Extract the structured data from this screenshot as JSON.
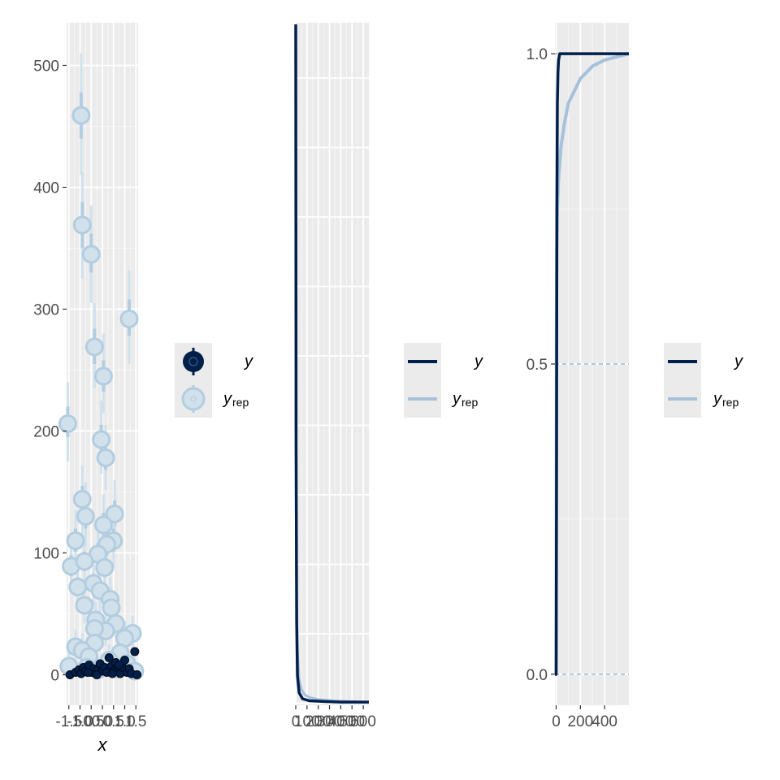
{
  "colors": {
    "y_dark": "#011f4b",
    "yrep_light": "#b3cde0",
    "yrep_mid": "#a6c1db",
    "panel_bg": "#ebebeb",
    "grid_major": "#ffffff",
    "grid_minor": "#f5f5f5",
    "legend_key_bg": "#ebebeb"
  },
  "legend": {
    "y_label": "y",
    "yrep_label": "y",
    "yrep_subscript": "rep"
  },
  "chart_data": [
    {
      "type": "scatter",
      "subtype": "ppc_intervals",
      "xlabel": "x",
      "ylabel": "",
      "xlim": [
        -1.6,
        1.6
      ],
      "ylim": [
        -25,
        535
      ],
      "x_ticks": [
        -1.5,
        -1.0,
        -0.5,
        0.0,
        0.5,
        1.0,
        1.5
      ],
      "x_tick_labels": [
        "-1.5",
        "-1.0",
        "-0.5",
        "0.0",
        "0.5",
        "1.0",
        "1.5"
      ],
      "y_ticks": [
        0,
        100,
        200,
        300,
        400,
        500
      ],
      "y_tick_labels": [
        "0",
        "100",
        "200",
        "300",
        "400",
        "500"
      ],
      "series": [
        {
          "name": "y_rep",
          "points": [
            {
              "x": -1.55,
              "y": 206,
              "lo50": 195,
              "hi50": 220,
              "lo90": 175,
              "hi90": 240
            },
            {
              "x": -0.95,
              "y": 459,
              "lo50": 440,
              "hi50": 478,
              "lo90": 410,
              "hi90": 510
            },
            {
              "x": -0.9,
              "y": 369,
              "lo50": 350,
              "hi50": 388,
              "lo90": 325,
              "hi90": 412
            },
            {
              "x": -0.5,
              "y": 345,
              "lo50": 330,
              "hi50": 362,
              "lo90": 305,
              "hi90": 385
            },
            {
              "x": -0.35,
              "y": 269,
              "lo50": 255,
              "hi50": 284,
              "lo90": 235,
              "hi90": 305
            },
            {
              "x": 0.05,
              "y": 245,
              "lo50": 232,
              "hi50": 258,
              "lo90": 215,
              "hi90": 280
            },
            {
              "x": 1.2,
              "y": 292,
              "lo50": 278,
              "hi50": 308,
              "lo90": 255,
              "hi90": 332
            },
            {
              "x": -0.05,
              "y": 193,
              "lo50": 182,
              "hi50": 205,
              "lo90": 165,
              "hi90": 225
            },
            {
              "x": 0.15,
              "y": 178,
              "lo50": 168,
              "hi50": 190,
              "lo90": 152,
              "hi90": 205
            },
            {
              "x": -0.9,
              "y": 144,
              "lo50": 132,
              "hi50": 155,
              "lo90": 115,
              "hi90": 172
            },
            {
              "x": -0.75,
              "y": 130,
              "lo50": 120,
              "hi50": 141,
              "lo90": 105,
              "hi90": 158
            },
            {
              "x": 0.55,
              "y": 132,
              "lo50": 122,
              "hi50": 143,
              "lo90": 108,
              "hi90": 160
            },
            {
              "x": -1.2,
              "y": 110,
              "lo50": 101,
              "hi50": 120,
              "lo90": 88,
              "hi90": 135
            },
            {
              "x": 0.05,
              "y": 123,
              "lo50": 113,
              "hi50": 133,
              "lo90": 100,
              "hi90": 148
            },
            {
              "x": 0.5,
              "y": 110,
              "lo50": 101,
              "hi50": 120,
              "lo90": 88,
              "hi90": 135
            },
            {
              "x": 0.2,
              "y": 107,
              "lo50": 98,
              "hi50": 117,
              "lo90": 85,
              "hi90": 132
            },
            {
              "x": -0.2,
              "y": 99,
              "lo50": 90,
              "hi50": 108,
              "lo90": 78,
              "hi90": 122
            },
            {
              "x": -1.4,
              "y": 89,
              "lo50": 81,
              "hi50": 98,
              "lo90": 70,
              "hi90": 110
            },
            {
              "x": -0.8,
              "y": 93,
              "lo50": 85,
              "hi50": 101,
              "lo90": 74,
              "hi90": 114
            },
            {
              "x": 0.1,
              "y": 88,
              "lo50": 80,
              "hi50": 96,
              "lo90": 70,
              "hi90": 108
            },
            {
              "x": -1.1,
              "y": 72,
              "lo50": 65,
              "hi50": 80,
              "lo90": 55,
              "hi90": 92
            },
            {
              "x": -0.4,
              "y": 75,
              "lo50": 68,
              "hi50": 83,
              "lo90": 58,
              "hi90": 95
            },
            {
              "x": -0.1,
              "y": 69,
              "lo50": 62,
              "hi50": 76,
              "lo90": 52,
              "hi90": 87
            },
            {
              "x": 0.35,
              "y": 62,
              "lo50": 56,
              "hi50": 69,
              "lo90": 47,
              "hi90": 80
            },
            {
              "x": -0.8,
              "y": 57,
              "lo50": 51,
              "hi50": 64,
              "lo90": 42,
              "hi90": 74
            },
            {
              "x": 0.4,
              "y": 55,
              "lo50": 49,
              "hi50": 62,
              "lo90": 40,
              "hi90": 72
            },
            {
              "x": -0.3,
              "y": 45,
              "lo50": 40,
              "hi50": 51,
              "lo90": 32,
              "hi90": 60
            },
            {
              "x": 0.6,
              "y": 42,
              "lo50": 37,
              "hi50": 48,
              "lo90": 30,
              "hi90": 57
            },
            {
              "x": 0.15,
              "y": 36,
              "lo50": 31,
              "hi50": 42,
              "lo90": 24,
              "hi90": 50
            },
            {
              "x": -0.35,
              "y": 38,
              "lo50": 33,
              "hi50": 44,
              "lo90": 26,
              "hi90": 52
            },
            {
              "x": 1.35,
              "y": 34,
              "lo50": 29,
              "hi50": 40,
              "lo90": 22,
              "hi90": 48
            },
            {
              "x": 1.0,
              "y": 30,
              "lo50": 25,
              "hi50": 36,
              "lo90": 18,
              "hi90": 44
            },
            {
              "x": -0.35,
              "y": 26,
              "lo50": 21,
              "hi50": 32,
              "lo90": 15,
              "hi90": 40
            },
            {
              "x": -1.2,
              "y": 23,
              "lo50": 18,
              "hi50": 29,
              "lo90": 12,
              "hi90": 37
            },
            {
              "x": -0.9,
              "y": 20,
              "lo50": 15,
              "hi50": 26,
              "lo90": 9,
              "hi90": 34
            },
            {
              "x": 0.8,
              "y": 18,
              "lo50": 13,
              "hi50": 24,
              "lo90": 7,
              "hi90": 32
            },
            {
              "x": -0.6,
              "y": 15,
              "lo50": 10,
              "hi50": 21,
              "lo90": 4,
              "hi90": 28
            },
            {
              "x": 0.3,
              "y": 12,
              "lo50": 7,
              "hi50": 18,
              "lo90": 2,
              "hi90": 25
            },
            {
              "x": -1.5,
              "y": 7,
              "lo50": 3,
              "hi50": 12,
              "lo90": -1,
              "hi90": 18
            },
            {
              "x": 1.1,
              "y": 9,
              "lo50": 4,
              "hi50": 14,
              "lo90": 0,
              "hi90": 21
            },
            {
              "x": -0.7,
              "y": 6,
              "lo50": 2,
              "hi50": 11,
              "lo90": -2,
              "hi90": 17
            },
            {
              "x": 0.7,
              "y": 5,
              "lo50": 1,
              "hi50": 10,
              "lo90": -3,
              "hi90": 16
            },
            {
              "x": -0.2,
              "y": 4,
              "lo50": 0,
              "hi50": 9,
              "lo90": -4,
              "hi90": 15
            },
            {
              "x": 1.45,
              "y": 3,
              "lo50": 0,
              "hi50": 8,
              "lo90": -4,
              "hi90": 14
            }
          ]
        },
        {
          "name": "y",
          "points": [
            {
              "x": -1.45,
              "y": 0
            },
            {
              "x": -1.2,
              "y": 2
            },
            {
              "x": -1.05,
              "y": 4
            },
            {
              "x": -0.95,
              "y": 1
            },
            {
              "x": -0.85,
              "y": 6
            },
            {
              "x": -0.75,
              "y": 3
            },
            {
              "x": -0.6,
              "y": 8
            },
            {
              "x": -0.5,
              "y": 2
            },
            {
              "x": -0.4,
              "y": 5
            },
            {
              "x": -0.3,
              "y": 1
            },
            {
              "x": -0.2,
              "y": 4
            },
            {
              "x": -0.1,
              "y": 9
            },
            {
              "x": 0.0,
              "y": 3
            },
            {
              "x": 0.1,
              "y": 6
            },
            {
              "x": 0.2,
              "y": 2
            },
            {
              "x": 0.3,
              "y": 14
            },
            {
              "x": 0.4,
              "y": 7
            },
            {
              "x": 0.5,
              "y": 3
            },
            {
              "x": 0.6,
              "y": 10
            },
            {
              "x": 0.7,
              "y": 4
            },
            {
              "x": 0.8,
              "y": 1
            },
            {
              "x": 0.9,
              "y": 6
            },
            {
              "x": 1.0,
              "y": 12
            },
            {
              "x": 1.1,
              "y": 2
            },
            {
              "x": 1.2,
              "y": 5
            },
            {
              "x": 1.3,
              "y": 1
            },
            {
              "x": 1.45,
              "y": 19
            },
            {
              "x": 1.55,
              "y": 0
            },
            {
              "x": -0.25,
              "y": 0
            },
            {
              "x": 0.45,
              "y": 1
            },
            {
              "x": 0.75,
              "y": 8
            },
            {
              "x": -0.65,
              "y": 2
            }
          ]
        }
      ]
    },
    {
      "type": "line",
      "subtype": "density_overlay",
      "xlabel": "",
      "ylabel": "",
      "xlim": [
        0,
        650
      ],
      "x_ticks": [
        0,
        100,
        200,
        300,
        400,
        500,
        600
      ],
      "x_tick_labels": [
        "0",
        "100",
        "200",
        "300",
        "400",
        "500",
        "600"
      ],
      "series": [
        {
          "name": "y",
          "x": [
            0,
            3,
            8,
            15,
            30,
            60,
            120,
            250,
            400,
            650
          ],
          "values": [
            1.0,
            0.38,
            0.12,
            0.04,
            0.015,
            0.006,
            0.003,
            0.002,
            0.001,
            0.001
          ]
        },
        {
          "name": "y_rep",
          "x": [
            0,
            5,
            15,
            30,
            50,
            80,
            120,
            200,
            350,
            500,
            650
          ],
          "values": [
            0.45,
            0.2,
            0.08,
            0.035,
            0.02,
            0.012,
            0.008,
            0.005,
            0.003,
            0.002,
            0.001
          ]
        }
      ]
    },
    {
      "type": "line",
      "subtype": "ecdf_overlay",
      "xlabel": "",
      "ylabel": "",
      "xlim": [
        -10,
        600
      ],
      "ylim": [
        -0.05,
        1.05
      ],
      "x_ticks": [
        0,
        200,
        400
      ],
      "x_tick_labels": [
        "0",
        "200",
        "400"
      ],
      "y_ticks": [
        0.0,
        0.5,
        1.0
      ],
      "y_tick_labels": [
        "0.0",
        "0.5",
        "1.0"
      ],
      "series": [
        {
          "name": "y",
          "x": [
            -10,
            0,
            3,
            6,
            10,
            15,
            20,
            30,
            600
          ],
          "values": [
            0,
            0,
            0.3,
            0.75,
            0.92,
            0.97,
            0.99,
            1.0,
            1.0
          ]
        },
        {
          "name": "y_rep",
          "x": [
            -10,
            0,
            2,
            5,
            10,
            20,
            40,
            70,
            100,
            150,
            200,
            300,
            400,
            600
          ],
          "values": [
            0,
            0,
            0.55,
            0.68,
            0.75,
            0.8,
            0.85,
            0.89,
            0.92,
            0.94,
            0.96,
            0.98,
            0.99,
            1.0
          ]
        }
      ]
    }
  ]
}
